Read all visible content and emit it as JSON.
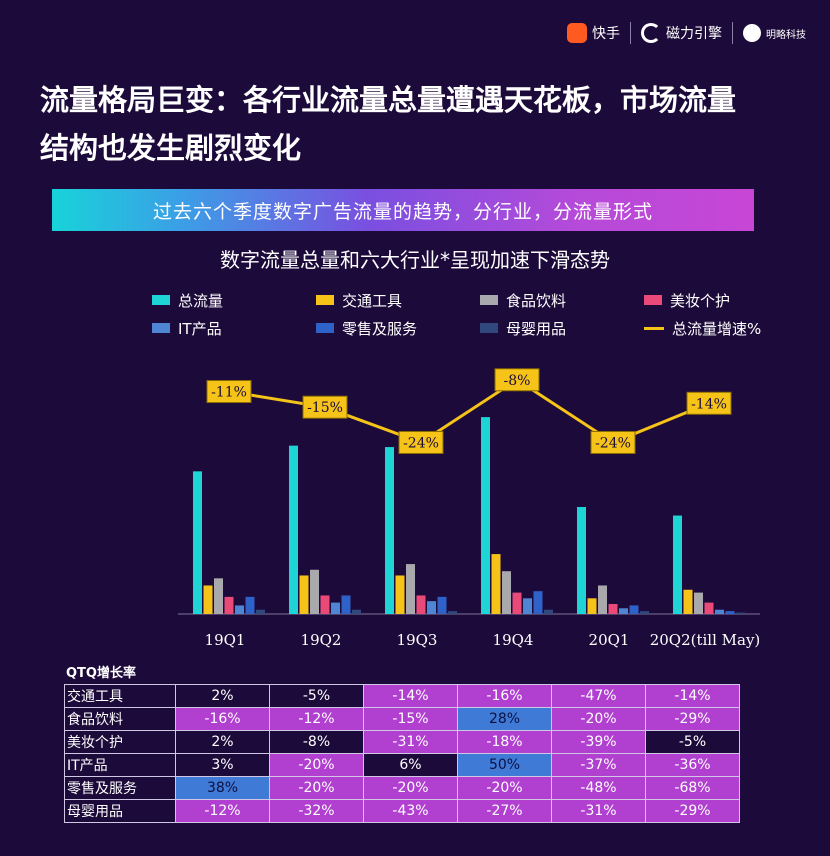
{
  "logos": {
    "kuaishou": "快手",
    "cili": "磁力引擎",
    "mingjing": "明略科技"
  },
  "headline": "流量格局巨变：各行业流量总量遭遇天花板，市场流量结构也发生剧烈变化",
  "banner": "过去六个季度数字广告流量的趋势，分行业，分流量形式",
  "chart_data": {
    "type": "bar",
    "title": "数字流量总量和六大行业*呈现加速下滑态势",
    "categories": [
      "19Q1",
      "19Q2",
      "19Q3",
      "19Q4",
      "20Q1",
      "20Q2(till May)"
    ],
    "series": [
      {
        "name": "总流量",
        "color": "#1fd4d4",
        "values": [
          100,
          118,
          117,
          138,
          75,
          69
        ]
      },
      {
        "name": "交通工具",
        "color": "#f6c418",
        "values": [
          20,
          27,
          27,
          42,
          11,
          17
        ]
      },
      {
        "name": "食品饮料",
        "color": "#a8a8ad",
        "values": [
          25,
          31,
          35,
          30,
          20,
          15
        ]
      },
      {
        "name": "美妆个护",
        "color": "#e94a78",
        "values": [
          12,
          13,
          13,
          15,
          7,
          8
        ]
      },
      {
        "name": "IT产品",
        "color": "#4f86d3",
        "values": [
          6,
          8,
          9,
          11,
          4,
          3
        ]
      },
      {
        "name": "零售及服务",
        "color": "#2f62c9",
        "values": [
          12,
          13,
          12,
          16,
          6,
          2
        ]
      },
      {
        "name": "母婴用品",
        "color": "#31487f",
        "values": [
          3,
          3,
          2,
          3,
          2,
          1
        ]
      }
    ],
    "line": {
      "name": "总流量增速%",
      "color": "#f6c418",
      "values": [
        -11,
        -15,
        -24,
        -8,
        -24,
        -14
      ],
      "labels": [
        "-11%",
        "-15%",
        "-24%",
        "-8%",
        "-24%",
        "-14%"
      ]
    },
    "ylim": [
      0,
      150
    ],
    "line_ylim": [
      -30,
      -5
    ],
    "legend_placement": "top"
  },
  "qtq": {
    "title": "QTQ增长率",
    "rows": [
      {
        "label": "交通工具",
        "cells": [
          {
            "v": "2%",
            "s": "dark"
          },
          {
            "v": "-5%",
            "s": "dark"
          },
          {
            "v": "-14%",
            "s": "neg-m"
          },
          {
            "v": "-16%",
            "s": "neg-m"
          },
          {
            "v": "-47%",
            "s": "neg-m"
          },
          {
            "v": "-14%",
            "s": "neg-m"
          }
        ]
      },
      {
        "label": "食品饮料",
        "cells": [
          {
            "v": "-16%",
            "s": "neg-m"
          },
          {
            "v": "-12%",
            "s": "neg-m"
          },
          {
            "v": "-15%",
            "s": "neg-m"
          },
          {
            "v": "28%",
            "s": "blue"
          },
          {
            "v": "-20%",
            "s": "neg-m"
          },
          {
            "v": "-29%",
            "s": "neg-m"
          }
        ]
      },
      {
        "label": "美妆个护",
        "cells": [
          {
            "v": "2%",
            "s": "dark"
          },
          {
            "v": "-8%",
            "s": "dark"
          },
          {
            "v": "-31%",
            "s": "neg-m"
          },
          {
            "v": "-18%",
            "s": "neg-m"
          },
          {
            "v": "-39%",
            "s": "neg-m"
          },
          {
            "v": "-5%",
            "s": "dark"
          }
        ]
      },
      {
        "label": "IT产品",
        "cells": [
          {
            "v": "3%",
            "s": "dark"
          },
          {
            "v": "-20%",
            "s": "neg-m"
          },
          {
            "v": "6%",
            "s": "dark"
          },
          {
            "v": "50%",
            "s": "blue"
          },
          {
            "v": "-37%",
            "s": "neg-m"
          },
          {
            "v": "-36%",
            "s": "neg-m"
          }
        ]
      },
      {
        "label": "零售及服务",
        "cells": [
          {
            "v": "38%",
            "s": "blue"
          },
          {
            "v": "-20%",
            "s": "neg-m"
          },
          {
            "v": "-20%",
            "s": "neg-m"
          },
          {
            "v": "-20%",
            "s": "neg-m"
          },
          {
            "v": "-48%",
            "s": "neg-m"
          },
          {
            "v": "-68%",
            "s": "neg-m"
          }
        ]
      },
      {
        "label": "母婴用品",
        "cells": [
          {
            "v": "-12%",
            "s": "neg-m"
          },
          {
            "v": "-32%",
            "s": "neg-m"
          },
          {
            "v": "-43%",
            "s": "neg-m"
          },
          {
            "v": "-27%",
            "s": "neg-m"
          },
          {
            "v": "-31%",
            "s": "neg-m"
          },
          {
            "v": "-29%",
            "s": "neg-m"
          }
        ]
      }
    ]
  }
}
